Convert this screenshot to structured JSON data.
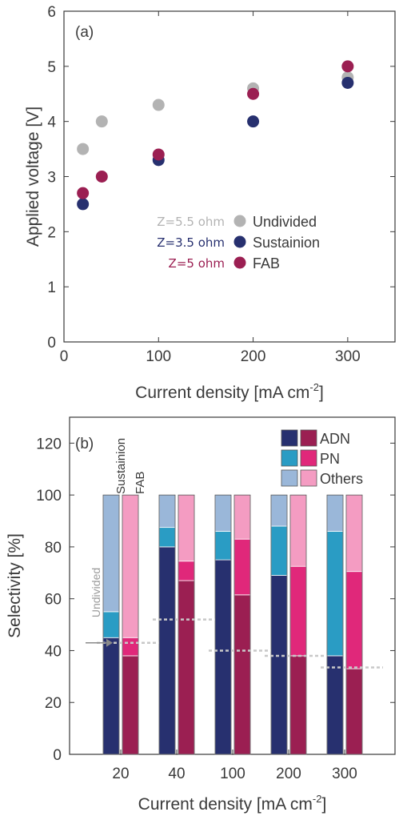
{
  "chart_data": [
    {
      "type": "scatter",
      "panel_label": "(a)",
      "xlabel_main": "Current density [mA cm",
      "xlabel_sup": "-2",
      "xlabel_end": "]",
      "ylabel": "Applied voltage [V]",
      "xlim": [
        0,
        350
      ],
      "ylim": [
        0,
        6
      ],
      "xticks": [
        0,
        100,
        200,
        300
      ],
      "yticks": [
        0,
        1,
        2,
        3,
        4,
        5,
        6
      ],
      "legend_position": "center-right",
      "series": [
        {
          "name": "Undivided",
          "annotation": "Z=5.5 ohm",
          "color": "#b3b3b3",
          "x": [
            20,
            40,
            100,
            200,
            300
          ],
          "y": [
            3.5,
            4.0,
            4.3,
            4.6,
            4.8
          ]
        },
        {
          "name": "Sustainion",
          "annotation": "Z=3.5 ohm",
          "color": "#27306f",
          "x": [
            20,
            100,
            200,
            300
          ],
          "y": [
            2.5,
            3.3,
            4.0,
            4.7
          ]
        },
        {
          "name": "FAB",
          "annotation": "Z=5 ohm",
          "color": "#9b1f52",
          "x": [
            20,
            40,
            100,
            200,
            300
          ],
          "y": [
            2.7,
            3.0,
            3.4,
            4.5,
            5.0
          ]
        }
      ]
    },
    {
      "type": "bar",
      "stacked": true,
      "panel_label": "(b)",
      "xlabel_main": "Current density [mA cm",
      "xlabel_sup": "-2",
      "xlabel_end": "]",
      "ylabel": "Selectivity [%]",
      "ylim": [
        0,
        130
      ],
      "yticks": [
        0,
        20,
        40,
        60,
        80,
        100,
        120
      ],
      "categories": [
        "20",
        "40",
        "100",
        "200",
        "300"
      ],
      "bar_labels": [
        "Sustainion",
        "FAB"
      ],
      "undivided_label": "Undivided",
      "undivided_adn": [
        43,
        52,
        40,
        38,
        33.5
      ],
      "components": [
        "ADN",
        "PN",
        "Others"
      ],
      "legend_position": "top-right",
      "colors": {
        "Sustainion": [
          "#27306f",
          "#2a9cc4",
          "#9ab7d9"
        ],
        "FAB": [
          "#9b1f52",
          "#e0287a",
          "#f49cc2"
        ]
      },
      "series": [
        {
          "name": "Sustainion",
          "ADN": [
            45,
            80,
            75,
            69,
            38
          ],
          "PN": [
            10,
            7.5,
            11,
            19,
            48
          ],
          "Others": [
            45,
            12.5,
            14,
            12,
            14
          ]
        },
        {
          "name": "FAB",
          "ADN": [
            38,
            67,
            61.5,
            38,
            33
          ],
          "PN": [
            7,
            7.5,
            21.5,
            34.5,
            37.5
          ],
          "Others": [
            55,
            25.5,
            17,
            27.5,
            29.5
          ]
        }
      ]
    }
  ]
}
